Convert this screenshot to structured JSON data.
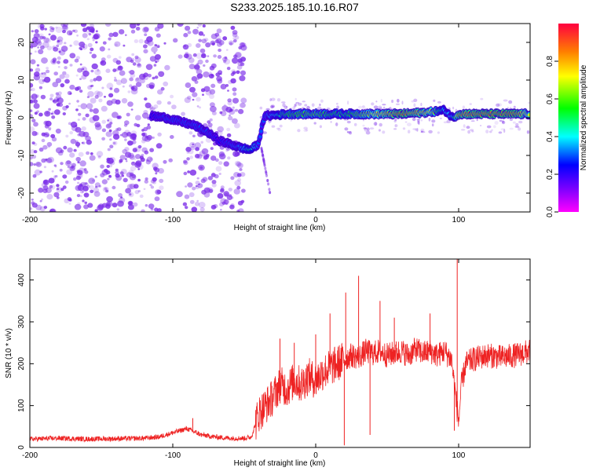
{
  "figure_title": "S233.2025.185.10.16.R07",
  "chart_data": [
    {
      "type": "heatmap",
      "xlabel": "Height of straight line (km)",
      "ylabel": "Frequency (Hz)",
      "xlim": [
        -200,
        150
      ],
      "ylim": [
        -25,
        25
      ],
      "x_ticks": [
        -200,
        -100,
        0,
        100
      ],
      "y_ticks": [
        -20,
        -10,
        0,
        10,
        20
      ],
      "colorbar": {
        "label": "Normalized spectral amplitude",
        "range": [
          0,
          1
        ],
        "ticks": [
          "0.0",
          "0.2",
          "0.4",
          "0.6",
          "0.8"
        ],
        "tick_values": [
          0,
          0.2,
          0.4,
          0.6,
          0.8
        ]
      },
      "ridge": {
        "x": [
          -115,
          -105,
          -95,
          -85,
          -75,
          -68,
          -60,
          -52,
          -46,
          -40,
          -37,
          -35,
          -20,
          0,
          20,
          40,
          60,
          80,
          90,
          96,
          100,
          120,
          140,
          150
        ],
        "freq_hz": [
          0.5,
          0,
          -1,
          -2,
          -4,
          -6,
          -7,
          -8,
          -8.5,
          -7,
          -1,
          0.5,
          1,
          1,
          1,
          1,
          1,
          1.5,
          2,
          0,
          1,
          1,
          1,
          1
        ],
        "amplitude": [
          0.25,
          0.3,
          0.3,
          0.3,
          0.3,
          0.25,
          0.3,
          0.35,
          0.5,
          0.3,
          0.3,
          0.3,
          0.55,
          0.6,
          0.5,
          0.7,
          0.9,
          0.75,
          0.4,
          0.4,
          0.85,
          0.9,
          0.9,
          0.7
        ]
      },
      "noise_region_x": [
        -200,
        -50
      ],
      "colors": {
        "low": "#7a2be8"
      }
    },
    {
      "type": "line",
      "xlabel": "Height of straight line (km)",
      "ylabel": "SNR (10 * v/v)",
      "xlim": [
        -200,
        150
      ],
      "ylim": [
        0,
        450
      ],
      "x_ticks": [
        -200,
        -100,
        0,
        100
      ],
      "y_ticks": [
        0,
        100,
        200,
        300,
        400
      ],
      "series": [
        {
          "color": "#ee2222",
          "x": [
            -200,
            -180,
            -160,
            -140,
            -120,
            -110,
            -100,
            -90,
            -80,
            -70,
            -60,
            -50,
            -45,
            -40,
            -35,
            -30,
            -25,
            -20,
            -15,
            -10,
            -5,
            0,
            5,
            10,
            15,
            20,
            25,
            30,
            35,
            40,
            45,
            50,
            55,
            60,
            65,
            70,
            75,
            80,
            85,
            90,
            95,
            98,
            100,
            102,
            105,
            110,
            120,
            130,
            140,
            150
          ],
          "y": [
            20,
            22,
            20,
            21,
            22,
            25,
            35,
            45,
            30,
            25,
            22,
            22,
            25,
            80,
            100,
            120,
            150,
            140,
            160,
            150,
            170,
            160,
            180,
            190,
            200,
            210,
            220,
            215,
            230,
            225,
            230,
            220,
            225,
            230,
            220,
            235,
            225,
            230,
            220,
            230,
            210,
            120,
            60,
            150,
            200,
            210,
            220,
            215,
            220,
            230
          ]
        }
      ],
      "spikes": [
        {
          "x": -86,
          "y": 70
        },
        {
          "x": -25,
          "y": 260
        },
        {
          "x": -15,
          "y": 250
        },
        {
          "x": 0,
          "y": 270
        },
        {
          "x": 10,
          "y": 320
        },
        {
          "x": 20,
          "y": 5
        },
        {
          "x": 21,
          "y": 370
        },
        {
          "x": 30,
          "y": 410
        },
        {
          "x": 38,
          "y": 30
        },
        {
          "x": 45,
          "y": 350
        },
        {
          "x": 55,
          "y": 310
        },
        {
          "x": 80,
          "y": 320
        },
        {
          "x": 99,
          "y": 450
        },
        {
          "x": 97,
          "y": 40
        }
      ]
    }
  ]
}
